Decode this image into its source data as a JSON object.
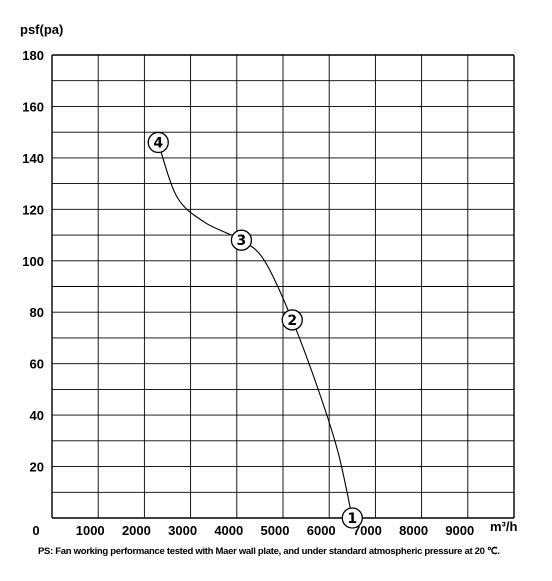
{
  "chart_data": {
    "type": "line",
    "ylabel": "psf(pa)",
    "xlabel": "m³/h",
    "xlim": [
      0,
      10000
    ],
    "ylim": [
      0,
      180
    ],
    "x_ticks": [
      0,
      1000,
      2000,
      3000,
      4000,
      5000,
      6000,
      7000,
      8000,
      9000
    ],
    "y_ticks": [
      0,
      20,
      40,
      60,
      80,
      100,
      120,
      140,
      160,
      180
    ],
    "grid": true,
    "series": [
      {
        "values": [
          {
            "x": 2300,
            "y": 146
          },
          {
            "x": 2700,
            "y": 125
          },
          {
            "x": 3300,
            "y": 115
          },
          {
            "x": 4100,
            "y": 108
          },
          {
            "x": 4600,
            "y": 100
          },
          {
            "x": 5200,
            "y": 77
          },
          {
            "x": 5800,
            "y": 48
          },
          {
            "x": 6200,
            "y": 25
          },
          {
            "x": 6500,
            "y": 0
          }
        ],
        "color": "#000000"
      }
    ],
    "annotations": [
      {
        "text": "1",
        "x": 6500,
        "y": 0
      },
      {
        "text": "2",
        "x": 5200,
        "y": 77
      },
      {
        "text": "3",
        "x": 4100,
        "y": 108
      },
      {
        "text": "4",
        "x": 2300,
        "y": 146
      }
    ],
    "note": "PS: Fan working performance tested with Maer wall plate, and under standard atmospheric pressure at 20 ℃."
  }
}
